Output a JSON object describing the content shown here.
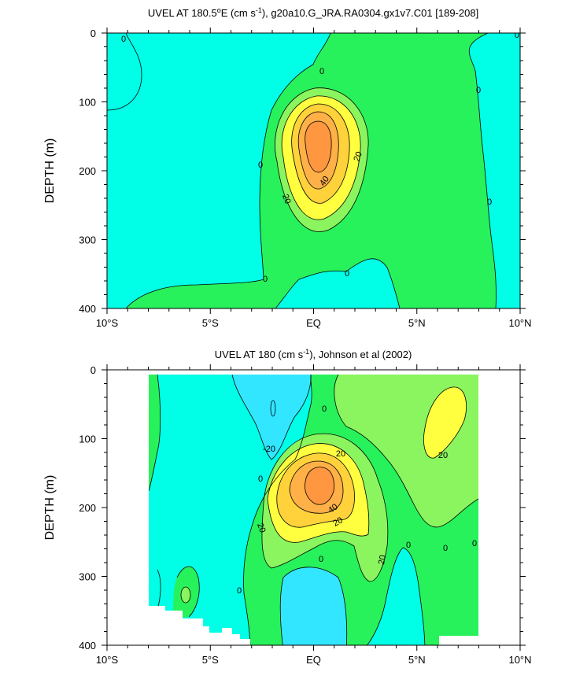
{
  "chart_data": [
    {
      "type": "contour",
      "title_parts": {
        "pre": "UVEL AT 180.5",
        "sup1": "o",
        "mid": "E (cm s",
        "sup2": "-1",
        "post": "), g20a10.G_JRA.RA0304.gx1v7.C01 [189-208]"
      },
      "ylabel": "DEPTH (m)",
      "xticks": [
        "10°S",
        "5°S",
        "EQ",
        "5°N",
        "10°N"
      ],
      "x_values": [
        -10,
        -5,
        0,
        5,
        10
      ],
      "yticks": [
        "0",
        "100",
        "200",
        "300",
        "400"
      ],
      "y_values": [
        0,
        100,
        200,
        300,
        400
      ],
      "xlim": [
        -10,
        10
      ],
      "ylim": [
        400,
        0
      ],
      "contour_interval": 10,
      "contour_labels": [
        "0",
        "0",
        "0",
        "0",
        "0",
        "0",
        "0",
        "20",
        "20",
        "40",
        "0"
      ],
      "levels": {
        "below_0": "#00ffe6",
        "0_to_10": "#27f25b",
        "10_to_20": "#8af55e",
        "20_to_30": "#ffff40",
        "30_to_40": "#ffd23c",
        "40_to_50": "#ffb046",
        "50_to_60": "#ff9640"
      }
    },
    {
      "type": "contour",
      "title_parts": {
        "pre": "UVEL AT 180 (cm s",
        "sup": "-1",
        "post": "), Johnson et al (2002)"
      },
      "ylabel": "DEPTH (m)",
      "xticks": [
        "10°S",
        "5°S",
        "EQ",
        "5°N",
        "10°N"
      ],
      "x_values": [
        -10,
        -5,
        0,
        5,
        10
      ],
      "yticks": [
        "0",
        "100",
        "200",
        "300",
        "400"
      ],
      "y_values": [
        0,
        100,
        200,
        300,
        400
      ],
      "xlim": [
        -10,
        10
      ],
      "ylim": [
        400,
        0
      ],
      "data_extent_lon": [
        -8,
        8
      ],
      "contour_interval": 10,
      "contour_labels": [
        "0",
        "-20",
        "0",
        "20",
        "40",
        "20",
        "20",
        "0",
        "0",
        "0",
        "20",
        "0",
        "20",
        "0"
      ],
      "levels": {
        "below_-10": "#32e6ff",
        "-10_to_0": "#00ffe6",
        "0_to_10": "#27f25b",
        "10_to_20": "#8af55e",
        "20_to_30": "#ffff40",
        "30_to_40": "#ffd23c",
        "40_to_50": "#ffb046",
        "50_to_60": "#ff9640"
      }
    }
  ]
}
